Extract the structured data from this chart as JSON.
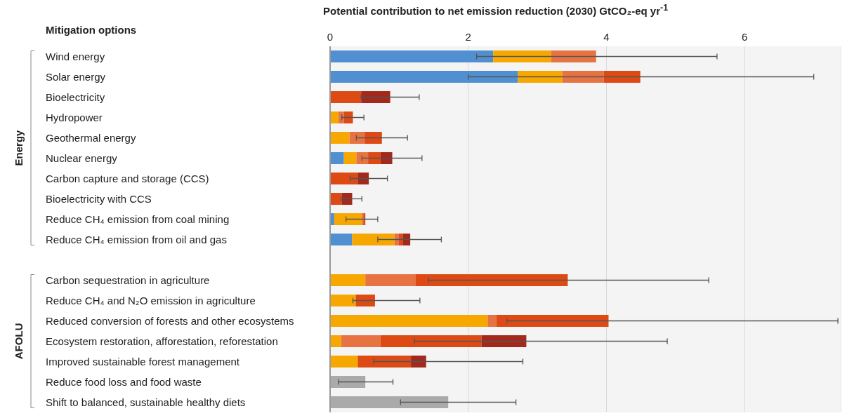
{
  "chart_data": {
    "type": "bar",
    "orientation": "horizontal",
    "stacked": true,
    "xlabel": "Potential contribution to net emission reduction (2030) GtCO₂-eq yr$^{-1}$",
    "ylabel": "Mitigation options",
    "annotations": [
      "Energy",
      "AFOLU"
    ],
    "categories": [
      "Wind energy",
      "Solar energy",
      "Bioelectricity",
      "Hydropower",
      "Geothermal energy",
      "Nuclear energy",
      "Carbon capture and storage (CCS)",
      "Bioelectricity with CCS",
      "Reduce CH₄ emission from coal mining",
      "Reduce CH₄ emission from oil and gas",
      null,
      "Carbon sequestration in agriculture",
      "Reduce CH₄ and N₂O emission in agriculture",
      "Reduced conversion of forests and other ecosystems",
      "Ecosystem restoration, afforestation, reforestation",
      "Improved sustainable forest management",
      "Reduce food loss and food waste",
      "Shift to balanced, sustainable healthy diets"
    ],
    "series": [
      {
        "color": "#5090d0",
        "values": [
          2.36,
          2.72,
          null,
          null,
          null,
          0.2,
          null,
          null,
          0.06,
          0.32,
          null,
          null,
          null,
          null,
          null,
          null,
          null,
          null
        ]
      },
      {
        "color": "#f7a800",
        "values": [
          0.84,
          0.64,
          null,
          0.12,
          0.28,
          0.18,
          null,
          null,
          0.4,
          0.61,
          null,
          0.51,
          0.37,
          2.28,
          0.16,
          0.4,
          null,
          null
        ]
      },
      {
        "color": "#e87342",
        "values": [
          0.65,
          0.6,
          null,
          0.08,
          0.22,
          0.17,
          null,
          null,
          0.02,
          0.06,
          null,
          0.73,
          null,
          0.13,
          0.57,
          null,
          null,
          null
        ],
        "errors": [
          [
            2.12,
            5.6
          ],
          null,
          null,
          null,
          null,
          null,
          null,
          null,
          null,
          null,
          null,
          null,
          null,
          null,
          null,
          null,
          null,
          null
        ]
      },
      {
        "color": "#dd4a14",
        "values": [
          null,
          0.53,
          0.45,
          0.13,
          0.25,
          0.18,
          0.4,
          0.17,
          0.03,
          0.06,
          null,
          2.2,
          0.28,
          1.62,
          1.46,
          0.77,
          null,
          null
        ],
        "errors": [
          null,
          [
            2.0,
            7.0
          ],
          null,
          [
            0.17,
            0.49
          ],
          [
            0.38,
            1.12
          ],
          null,
          null,
          null,
          [
            0.23,
            0.69
          ],
          null,
          null,
          [
            1.42,
            5.48
          ],
          [
            0.33,
            1.3
          ],
          [
            2.56,
            7.35
          ],
          null,
          null,
          null,
          null
        ]
      },
      {
        "color": "#a2291b",
        "values": [
          null,
          null,
          0.42,
          null,
          null,
          0.17,
          0.16,
          0.15,
          null,
          0.11,
          null,
          null,
          null,
          null,
          0.65,
          0.22,
          null,
          null
        ],
        "errors": [
          null,
          null,
          [
            0.45,
            1.29
          ],
          null,
          null,
          [
            0.46,
            1.33
          ],
          [
            0.29,
            0.83
          ],
          [
            0.16,
            0.46
          ],
          null,
          [
            0.69,
            1.61
          ],
          null,
          null,
          null,
          null,
          [
            1.22,
            4.88
          ],
          [
            0.63,
            2.79
          ],
          null,
          null
        ]
      },
      {
        "color": "#aaaaaa",
        "values": [
          null,
          null,
          null,
          null,
          null,
          null,
          null,
          null,
          null,
          null,
          null,
          null,
          null,
          null,
          null,
          null,
          0.51,
          1.71
        ],
        "errors": [
          null,
          null,
          null,
          null,
          null,
          null,
          null,
          null,
          null,
          null,
          null,
          null,
          null,
          null,
          null,
          null,
          [
            0.12,
            0.91
          ],
          [
            1.02,
            2.69
          ]
        ]
      }
    ],
    "xlim": [
      0,
      7.4
    ],
    "xticks": [
      0,
      2,
      4,
      6
    ],
    "grid": "x"
  }
}
